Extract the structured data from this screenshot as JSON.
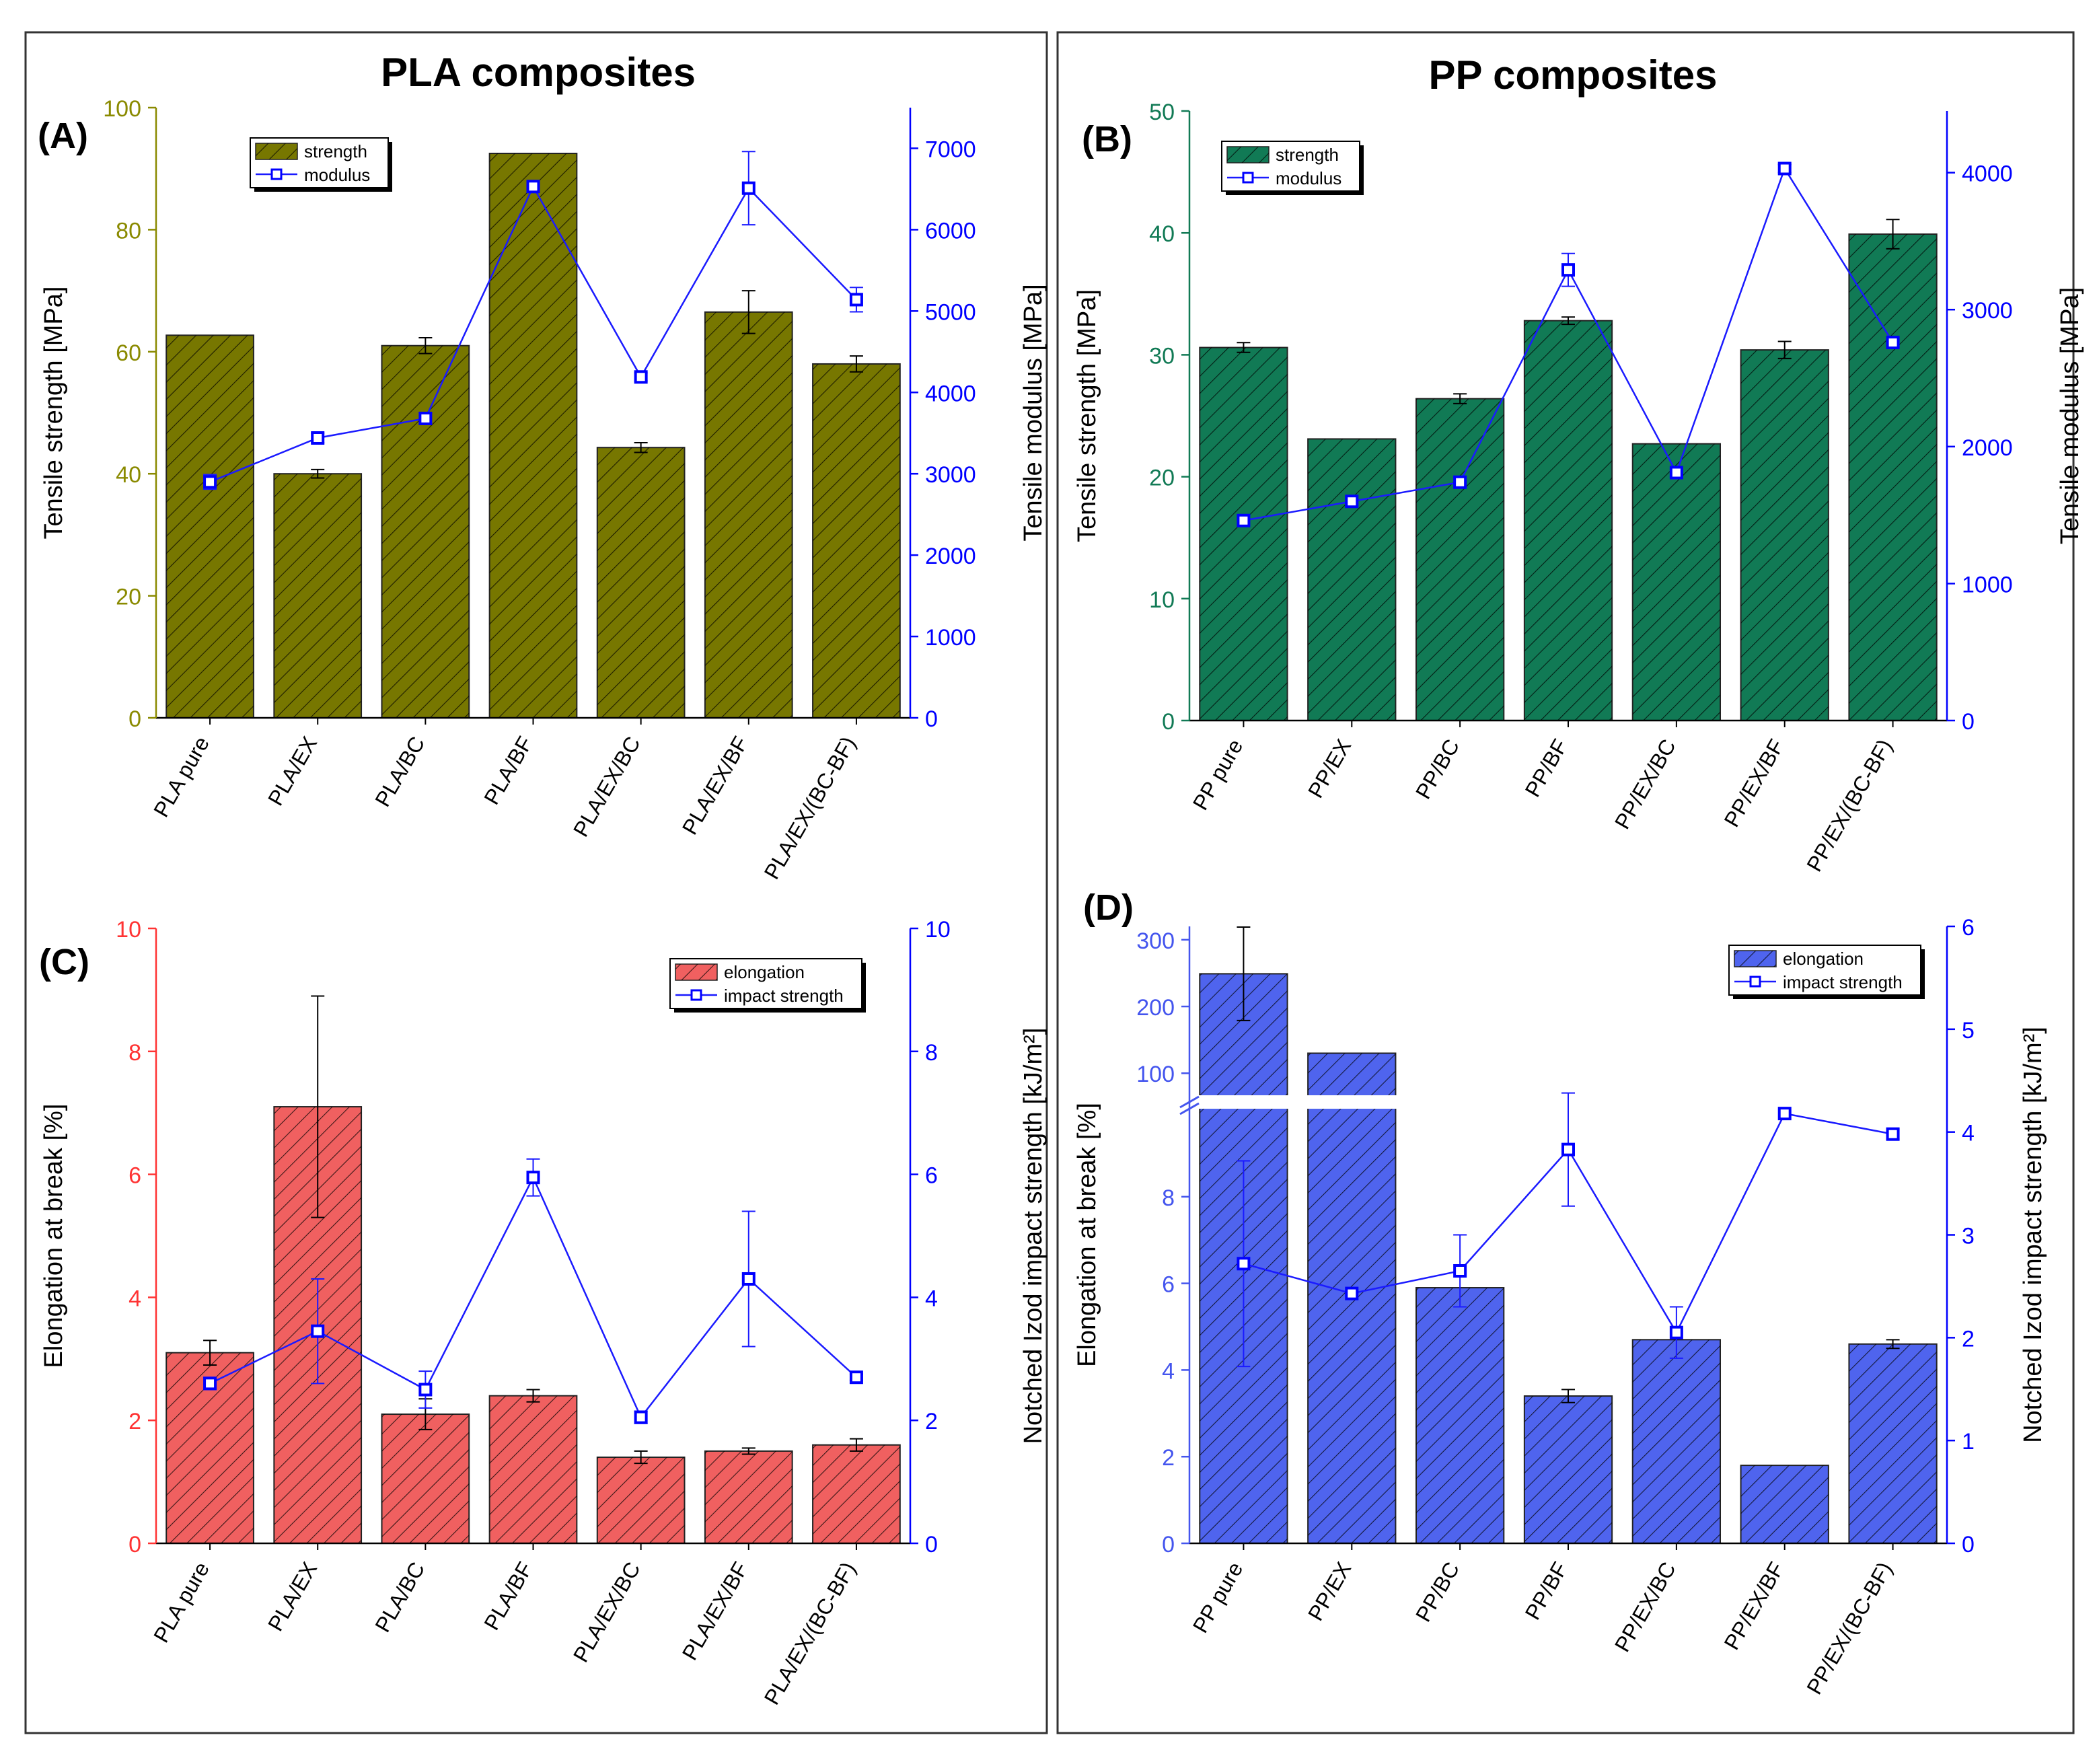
{
  "figure": {
    "pla_title": "PLA composites",
    "pp_title": "PP composites"
  },
  "chart_data": [
    {
      "panel": "(A)",
      "type": "bar+line",
      "color": "#777700",
      "left_axis_color": "#8a8a00",
      "right_axis_color": "#0000ff",
      "categories": [
        "PLA pure",
        "PLA/EX",
        "PLA/BC",
        "PLA/BF",
        "PLA/EX/BC",
        "PLA/EX/BF",
        "PLA/EX/(BC-BF)"
      ],
      "bar_series": {
        "name": "strength",
        "values": [
          62.7,
          40.0,
          61.0,
          92.5,
          44.3,
          66.5,
          58.0
        ],
        "errors": [
          0,
          0.7,
          1.3,
          0,
          0.8,
          3.5,
          1.3
        ]
      },
      "line_series": {
        "name": "modulus",
        "values": [
          2900,
          3440,
          3680,
          6530,
          4190,
          6510,
          5140
        ],
        "errors": [
          90,
          60,
          70,
          60,
          50,
          450,
          150
        ]
      },
      "ylabel_left": "Tensile strength [MPa]",
      "ylabel_right": "Tensile modulus [MPa]",
      "ylim_left": [
        0,
        100
      ],
      "ylim_right": [
        0,
        7500
      ],
      "yticks_left": [
        "0",
        "20",
        "40",
        "60",
        "80",
        "100"
      ],
      "yticks_right": [
        "0",
        "1000",
        "2000",
        "3000",
        "4000",
        "5000",
        "6000",
        "7000"
      ]
    },
    {
      "panel": "(B)",
      "type": "bar+line",
      "color": "#117a55",
      "left_axis_color": "#117a55",
      "right_axis_color": "#0000ff",
      "categories": [
        "PP pure",
        "PP/EX",
        "PP/BC",
        "PP/BF",
        "PP/EX/BC",
        "PP/EX/BF",
        "PP/EX/(BC-BF)"
      ],
      "bar_series": {
        "name": "strength",
        "values": [
          30.6,
          23.1,
          26.4,
          32.8,
          22.7,
          30.4,
          39.9
        ],
        "errors": [
          0.4,
          0,
          0.4,
          0.3,
          0,
          0.7,
          1.2
        ]
      },
      "line_series": {
        "name": "modulus",
        "values": [
          1460,
          1600,
          1740,
          3290,
          1810,
          4030,
          2760
        ],
        "errors": [
          30,
          20,
          40,
          120,
          30,
          30,
          30
        ]
      },
      "ylabel_left": "Tensile strength [MPa]",
      "ylabel_right": "Tensile modulus [MPa]",
      "ylim_left": [
        0,
        50
      ],
      "ylim_right": [
        0,
        4450
      ],
      "yticks_left": [
        "0",
        "10",
        "20",
        "30",
        "40",
        "50"
      ],
      "yticks_right": [
        "0",
        "1000",
        "2000",
        "3000",
        "4000"
      ]
    },
    {
      "panel": "(C)",
      "type": "bar+line",
      "color": "#f06060",
      "left_axis_color": "#ff3333",
      "right_axis_color": "#0000ff",
      "categories": [
        "PLA pure",
        "PLA/EX",
        "PLA/BC",
        "PLA/BF",
        "PLA/EX/BC",
        "PLA/EX/BF",
        "PLA/EX/(BC-BF)"
      ],
      "bar_series": {
        "name": "elongation",
        "values": [
          3.1,
          7.1,
          2.1,
          2.4,
          1.4,
          1.5,
          1.6
        ],
        "errors": [
          0.2,
          1.8,
          0.25,
          0.1,
          0.1,
          0.05,
          0.1
        ]
      },
      "line_series": {
        "name": "impact strength",
        "values": [
          2.6,
          3.45,
          2.5,
          5.95,
          2.05,
          4.3,
          2.7
        ],
        "errors": [
          0.1,
          0.85,
          0.3,
          0.3,
          0.1,
          1.1,
          0.05
        ]
      },
      "ylabel_left": "Elongation at break [%]",
      "ylabel_right": "Notched Izod impact strength [kJ/m²]",
      "ylim_left": [
        0,
        10
      ],
      "ylim_right": [
        0,
        10
      ],
      "yticks_left": [
        "0",
        "2",
        "4",
        "6",
        "8",
        "10"
      ],
      "yticks_right": [
        "0",
        "2",
        "4",
        "6",
        "8",
        "10"
      ]
    },
    {
      "panel": "(D)",
      "type": "bar+line (broken left axis)",
      "color": "#4f64ee",
      "left_axis_color": "#4455ee",
      "right_axis_color": "#0000ff",
      "categories": [
        "PP pure",
        "PP/EX",
        "PP/BC",
        "PP/BF",
        "PP/EX/BC",
        "PP/EX/BF",
        "PP/EX/(BC-BF)"
      ],
      "bar_series": {
        "name": "elongation",
        "values": [
          249,
          130,
          5.9,
          3.4,
          4.7,
          1.8,
          4.6
        ],
        "errors": [
          70,
          0,
          0,
          0.15,
          0,
          0,
          0.1
        ]
      },
      "line_series": {
        "name": "impact strength",
        "values": [
          2.72,
          2.43,
          2.65,
          3.83,
          2.05,
          4.18,
          3.98
        ],
        "errors": [
          1.0,
          0,
          0.35,
          0.55,
          0.25,
          0,
          0.05
        ]
      },
      "ylabel_left": "Elongation at break [%]",
      "ylabel_right": "Notched Izod impact strength [kJ/m²]",
      "ylim_left_lower": [
        0,
        10
      ],
      "ylim_left_upper": [
        70,
        320
      ],
      "ylim_right": [
        0,
        6
      ],
      "yticks_left": [
        "0",
        "2",
        "4",
        "6",
        "8",
        "100",
        "200",
        "300"
      ],
      "yticks_right": [
        "0",
        "1",
        "2",
        "3",
        "4",
        "5",
        "6"
      ]
    }
  ]
}
